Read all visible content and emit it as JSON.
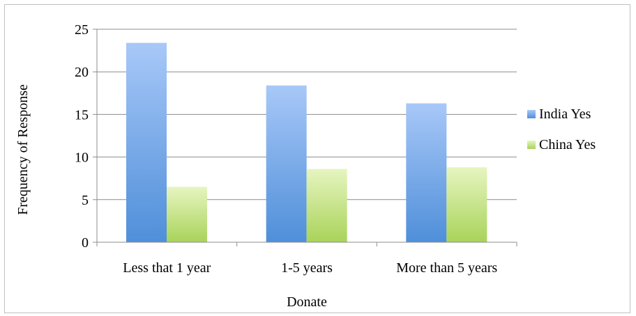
{
  "chart_data": {
    "type": "bar",
    "title": "",
    "xlabel": "Donate",
    "ylabel": "Frequency of Response",
    "categories": [
      "Less that 1 year",
      "1-5 years",
      "More than 5 years"
    ],
    "series": [
      {
        "name": "India Yes",
        "values": [
          23.4,
          18.4,
          16.3
        ],
        "color_top": "#a8c8f8",
        "color_bottom": "#4f8fd9"
      },
      {
        "name": "China Yes",
        "values": [
          6.5,
          8.6,
          8.8
        ],
        "color_top": "#e6f5c0",
        "color_bottom": "#a9d35a"
      }
    ],
    "ylim": [
      0,
      25
    ],
    "yticks": [
      "0",
      "5",
      "10",
      "15",
      "20",
      "25"
    ],
    "grid": true,
    "legend_position": "right"
  }
}
